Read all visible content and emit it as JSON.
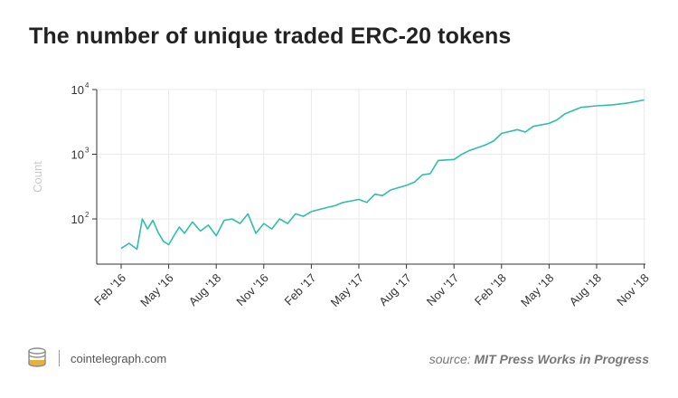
{
  "chart_data": {
    "type": "line",
    "title": "The number of unique traded ERC-20 tokens",
    "xlabel": "",
    "ylabel": "Count",
    "yscale": "log",
    "ylim": [
      20,
      10000
    ],
    "y_ticks": [
      100,
      1000,
      10000
    ],
    "y_tick_labels": [
      {
        "base": "10",
        "exp": "2"
      },
      {
        "base": "10",
        "exp": "3"
      },
      {
        "base": "10",
        "exp": "4"
      }
    ],
    "x_tick_labels": [
      "Feb '16",
      "May '16",
      "Aug '18",
      "Nov '16",
      "Feb '17",
      "May '17",
      "Aug '17",
      "Nov '17",
      "Feb '18",
      "May '18",
      "Aug '18",
      "Nov '18"
    ],
    "grid": true,
    "line_color": "#2fbfa8",
    "series": [
      {
        "x": [
          "2016-02",
          "2016-02",
          "2016-03",
          "2016-03",
          "2016-03",
          "2016-04",
          "2016-04",
          "2016-04",
          "2016-05",
          "2016-05",
          "2016-05",
          "2016-06",
          "2016-06",
          "2016-07",
          "2016-07",
          "2016-08",
          "2016-08",
          "2016-09",
          "2016-09",
          "2016-10",
          "2016-10",
          "2016-11",
          "2016-11",
          "2016-12",
          "2016-12",
          "2017-01",
          "2017-01",
          "2017-02",
          "2017-03",
          "2017-03",
          "2017-04",
          "2017-05",
          "2017-05",
          "2017-06",
          "2017-06",
          "2017-07",
          "2017-08",
          "2017-08",
          "2017-09",
          "2017-09",
          "2017-10",
          "2017-11",
          "2017-11",
          "2017-12",
          "2018-01",
          "2018-01",
          "2018-02",
          "2018-03",
          "2018-03",
          "2018-04",
          "2018-05",
          "2018-05",
          "2018-06",
          "2018-07",
          "2018-08",
          "2018-09",
          "2018-10",
          "2018-11"
        ],
        "values": [
          35,
          42,
          34,
          100,
          70,
          95,
          62,
          45,
          40,
          55,
          75,
          60,
          90,
          65,
          80,
          55,
          95,
          100,
          85,
          120,
          60,
          85,
          70,
          100,
          85,
          120,
          110,
          130,
          150,
          160,
          180,
          200,
          180,
          240,
          230,
          280,
          330,
          370,
          480,
          500,
          800,
          830,
          1000,
          1150,
          1400,
          1600,
          2100,
          2400,
          2200,
          2700,
          3000,
          3400,
          4200,
          5300,
          5600,
          5800,
          6200,
          6900
        ]
      }
    ]
  },
  "footer": {
    "site": "cointelegraph.com",
    "source_prefix": "source:",
    "source_name": "MIT Press Works in Progress"
  }
}
